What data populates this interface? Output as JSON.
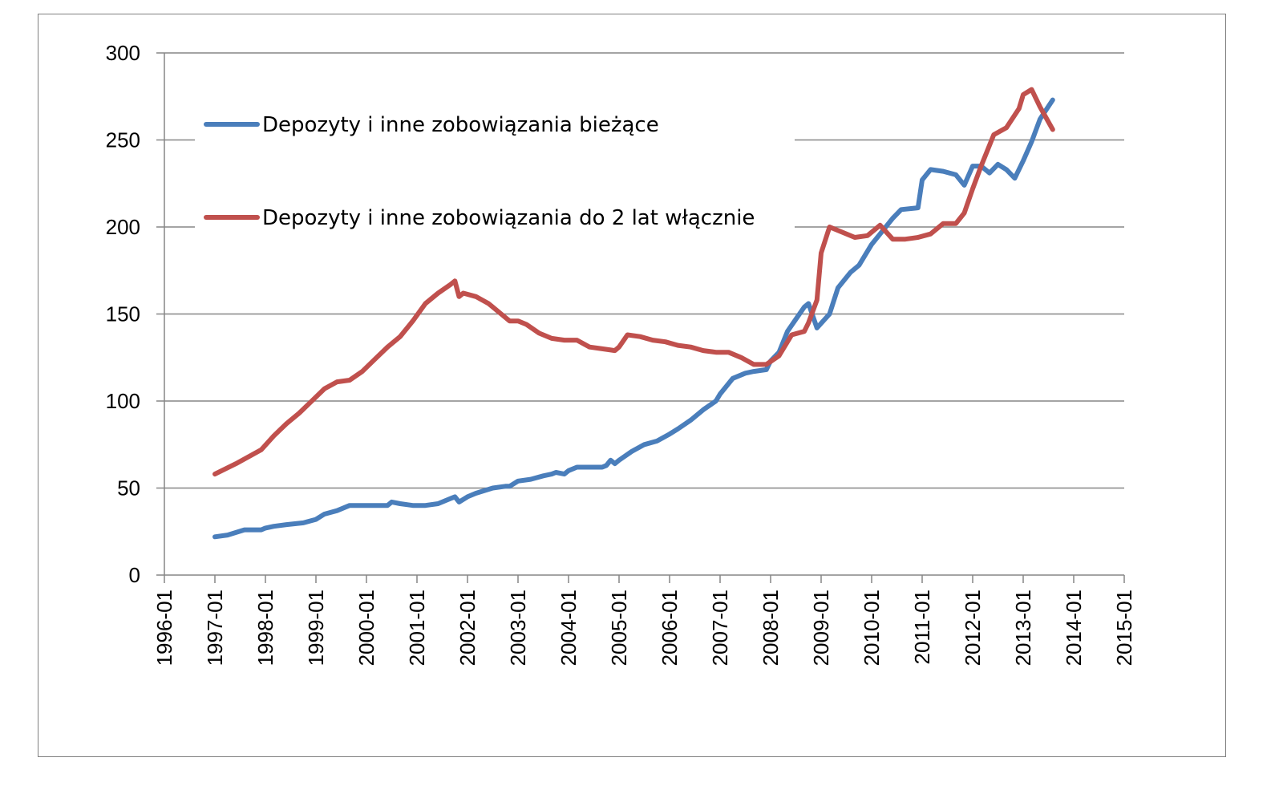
{
  "chart_data": {
    "type": "line",
    "title": "",
    "xlabel": "",
    "ylabel": "",
    "ylim": [
      0,
      300
    ],
    "yticks": [
      0,
      50,
      100,
      150,
      200,
      250,
      300
    ],
    "xlim": [
      "1996-01",
      "2015-01"
    ],
    "xticks": [
      "1996-01",
      "1997-01",
      "1998-01",
      "1999-01",
      "2000-01",
      "2001-01",
      "2002-01",
      "2003-01",
      "2004-01",
      "2005-01",
      "2006-01",
      "2007-01",
      "2008-01",
      "2009-01",
      "2010-01",
      "2011-01",
      "2012-01",
      "2013-01",
      "2014-01",
      "2015-01"
    ],
    "grid": true,
    "legend_position": "top-left",
    "series": [
      {
        "name": "Depozyty i inne zobowiązania bieżące",
        "color": "#4a7ebb",
        "x": [
          "1997-01",
          "1997-04",
          "1997-08",
          "1997-12",
          "1998-01",
          "1998-03",
          "1998-06",
          "1998-10",
          "1999-01",
          "1999-03",
          "1999-06",
          "1999-09",
          "1999-12",
          "2000-03",
          "2000-06",
          "2000-07",
          "2000-09",
          "2000-12",
          "2001-03",
          "2001-06",
          "2001-09",
          "2001-10",
          "2001-11",
          "2002-01",
          "2002-03",
          "2002-07",
          "2002-10",
          "2002-11",
          "2003-01",
          "2003-04",
          "2003-07",
          "2003-09",
          "2003-10",
          "2003-12",
          "2004-01",
          "2004-03",
          "2004-06",
          "2004-09",
          "2004-10",
          "2004-11",
          "2004-12",
          "2005-01",
          "2005-04",
          "2005-07",
          "2005-10",
          "2006-01",
          "2006-03",
          "2006-06",
          "2006-09",
          "2006-12",
          "2007-01",
          "2007-04",
          "2007-07",
          "2007-09",
          "2007-12",
          "2008-01",
          "2008-03",
          "2008-05",
          "2008-07",
          "2008-09",
          "2008-10",
          "2008-12",
          "2009-03",
          "2009-05",
          "2009-08",
          "2009-10",
          "2010-01",
          "2010-03",
          "2010-06",
          "2010-08",
          "2010-12",
          "2011-01",
          "2011-03",
          "2011-06",
          "2011-09",
          "2011-11",
          "2012-01",
          "2012-03",
          "2012-05",
          "2012-07",
          "2012-09",
          "2012-11",
          "2013-01",
          "2013-03",
          "2013-05",
          "2013-08"
        ],
        "values": [
          22,
          23,
          26,
          26,
          27,
          28,
          29,
          30,
          32,
          35,
          37,
          40,
          40,
          40,
          40,
          42,
          41,
          40,
          40,
          41,
          44,
          45,
          42,
          45,
          47,
          50,
          51,
          51,
          54,
          55,
          57,
          58,
          59,
          58,
          60,
          62,
          62,
          62,
          63,
          66,
          64,
          66,
          71,
          75,
          77,
          81,
          84,
          89,
          95,
          100,
          104,
          113,
          116,
          117,
          118,
          123,
          128,
          140,
          147,
          154,
          156,
          142,
          150,
          165,
          174,
          178,
          190,
          196,
          205,
          210,
          211,
          227,
          233,
          232,
          230,
          224,
          235,
          235,
          231,
          236,
          233,
          228,
          238,
          249,
          262,
          273
        ]
      },
      {
        "name": "Depozyty i inne zobowiązania do 2 lat włącznie",
        "color": "#c0504d",
        "x": [
          "1997-01",
          "1997-06",
          "1997-12",
          "1998-03",
          "1998-06",
          "1998-09",
          "1998-12",
          "1999-03",
          "1999-06",
          "1999-09",
          "1999-12",
          "2000-03",
          "2000-06",
          "2000-09",
          "2000-12",
          "2001-03",
          "2001-06",
          "2001-09",
          "2001-10",
          "2001-11",
          "2001-12",
          "2002-03",
          "2002-06",
          "2002-09",
          "2002-11",
          "2003-01",
          "2003-03",
          "2003-06",
          "2003-09",
          "2003-12",
          "2004-03",
          "2004-06",
          "2004-09",
          "2004-12",
          "2005-01",
          "2005-03",
          "2005-06",
          "2005-09",
          "2005-12",
          "2006-03",
          "2006-06",
          "2006-09",
          "2006-12",
          "2007-03",
          "2007-06",
          "2007-09",
          "2007-12",
          "2008-03",
          "2008-06",
          "2008-09",
          "2008-10",
          "2008-12",
          "2009-01",
          "2009-03",
          "2009-06",
          "2009-09",
          "2009-12",
          "2010-03",
          "2010-06",
          "2010-09",
          "2010-12",
          "2011-03",
          "2011-06",
          "2011-09",
          "2011-11",
          "2012-01",
          "2012-03",
          "2012-06",
          "2012-09",
          "2012-12",
          "2013-01",
          "2013-03",
          "2013-05",
          "2013-08"
        ],
        "values": [
          58,
          64,
          72,
          80,
          87,
          93,
          100,
          107,
          111,
          112,
          117,
          124,
          131,
          137,
          146,
          156,
          162,
          167,
          169,
          160,
          162,
          160,
          156,
          150,
          146,
          146,
          144,
          139,
          136,
          135,
          135,
          131,
          130,
          129,
          131,
          138,
          137,
          135,
          134,
          132,
          131,
          129,
          128,
          128,
          125,
          121,
          121,
          126,
          138,
          140,
          145,
          158,
          185,
          200,
          197,
          194,
          195,
          201,
          193,
          193,
          194,
          196,
          202,
          202,
          208,
          222,
          235,
          253,
          257,
          268,
          276,
          279,
          269,
          256
        ]
      }
    ]
  }
}
